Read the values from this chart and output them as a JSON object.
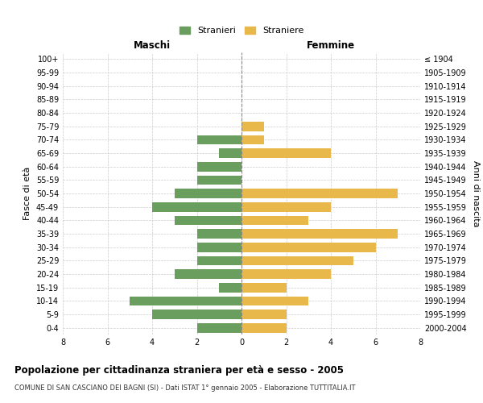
{
  "age_groups": [
    "100+",
    "95-99",
    "90-94",
    "85-89",
    "80-84",
    "75-79",
    "70-74",
    "65-69",
    "60-64",
    "55-59",
    "50-54",
    "45-49",
    "40-44",
    "35-39",
    "30-34",
    "25-29",
    "20-24",
    "15-19",
    "10-14",
    "5-9",
    "0-4"
  ],
  "birth_years": [
    "≤ 1904",
    "1905-1909",
    "1910-1914",
    "1915-1919",
    "1920-1924",
    "1925-1929",
    "1930-1934",
    "1935-1939",
    "1940-1944",
    "1945-1949",
    "1950-1954",
    "1955-1959",
    "1960-1964",
    "1965-1969",
    "1970-1974",
    "1975-1979",
    "1980-1984",
    "1985-1989",
    "1990-1994",
    "1995-1999",
    "2000-2004"
  ],
  "males": [
    0,
    0,
    0,
    0,
    0,
    0,
    2,
    1,
    2,
    2,
    3,
    4,
    3,
    2,
    2,
    2,
    3,
    1,
    5,
    4,
    2
  ],
  "females": [
    0,
    0,
    0,
    0,
    0,
    1,
    1,
    4,
    0,
    0,
    7,
    4,
    3,
    7,
    6,
    5,
    4,
    2,
    3,
    2,
    2
  ],
  "male_color": "#6a9e5e",
  "female_color": "#e8b84b",
  "title": "Popolazione per cittadinanza straniera per età e sesso - 2005",
  "subtitle": "COMUNE DI SAN CASCIANO DEI BAGNI (SI) - Dati ISTAT 1° gennaio 2005 - Elaborazione TUTTITALIA.IT",
  "xlabel_left": "Maschi",
  "xlabel_right": "Femmine",
  "ylabel_left": "Fasce di età",
  "ylabel_right": "Anni di nascita",
  "legend_male": "Stranieri",
  "legend_female": "Straniere",
  "xlim": 8,
  "bg_color": "#ffffff",
  "grid_color": "#cccccc"
}
